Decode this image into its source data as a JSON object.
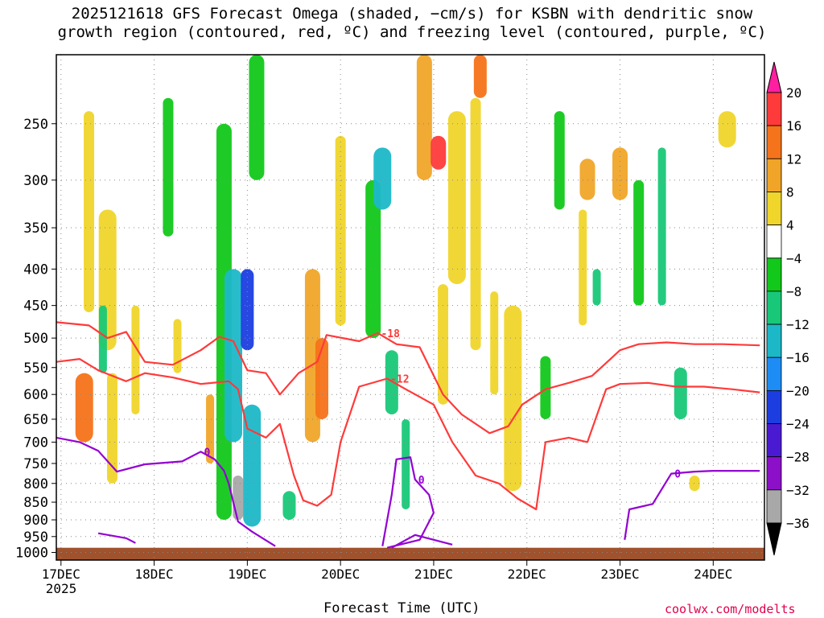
{
  "title_line1": "2025121618 GFS Forecast Omega (shaded, −cm/s) for KSBN with dendritic snow",
  "title_line2": "growth region (contoured, red, ºC) and freezing level (contoured, purple, ºC)",
  "xaxis_title": "Forecast Time (UTC)",
  "credit": "coolwx.com/modelts",
  "colors": {
    "dgz_contour": "#ff3a3a",
    "freezing_contour": "#9400d3",
    "ground": "#a0522d",
    "grid": "#888888"
  },
  "chart_data": {
    "type": "heatmap",
    "x_label": "Forecast Time (UTC)",
    "x_range": [
      "2025-12-17 00Z",
      "2025-12-24 12Z"
    ],
    "x_ticks": [
      {
        "day": 17,
        "label": "17DEC",
        "sublabel": "2025"
      },
      {
        "day": 18,
        "label": "18DEC"
      },
      {
        "day": 19,
        "label": "19DEC"
      },
      {
        "day": 20,
        "label": "20DEC"
      },
      {
        "day": 21,
        "label": "21DEC"
      },
      {
        "day": 22,
        "label": "22DEC"
      },
      {
        "day": 23,
        "label": "23DEC"
      },
      {
        "day": 24,
        "label": "24DEC"
      }
    ],
    "y_axis": {
      "unit": "hPa",
      "scale": "log",
      "inverted": true,
      "range": [
        1025,
        200
      ]
    },
    "y_ticks": [
      250,
      300,
      350,
      400,
      450,
      500,
      550,
      600,
      650,
      700,
      750,
      800,
      850,
      900,
      950,
      1000
    ],
    "grid": true,
    "colorbar": {
      "labels": [
        "20",
        "16",
        "12",
        "8",
        "4",
        "−4",
        "−8",
        "−12",
        "−16",
        "−20",
        "−24",
        "−28",
        "−32",
        "−36"
      ],
      "colors": [
        "#ff1fa0",
        "#ff3a3a",
        "#f5731a",
        "#f0a528",
        "#f0d52b",
        "#ffffff",
        "#12c81a",
        "#18c878",
        "#1cb8c8",
        "#1e8cf5",
        "#1c3ee0",
        "#4a1ad2",
        "#8c10c8",
        "#a8a8a8",
        "#000000"
      ],
      "levels": [
        20,
        16,
        12,
        8,
        4,
        -4,
        -8,
        -12,
        -16,
        -20,
        -24,
        -28,
        -32,
        -36
      ]
    },
    "omega_cells": [
      {
        "t": 17.25,
        "p": [
          700,
          560
        ],
        "v": 14
      },
      {
        "t": 17.3,
        "p": [
          460,
          240
        ],
        "v": 6
      },
      {
        "t": 17.5,
        "p": [
          520,
          330
        ],
        "v": 4
      },
      {
        "t": 17.55,
        "p": [
          800,
          560
        ],
        "v": 6
      },
      {
        "t": 17.8,
        "p": [
          640,
          450
        ],
        "v": 5
      },
      {
        "t": 17.45,
        "p": [
          560,
          450
        ],
        "v": -10
      },
      {
        "t": 18.15,
        "p": [
          360,
          230
        ],
        "v": -6
      },
      {
        "t": 18.25,
        "p": [
          560,
          470
        ],
        "v": 5
      },
      {
        "t": 18.6,
        "p": [
          750,
          600
        ],
        "v": 10
      },
      {
        "t": 18.75,
        "p": [
          900,
          250
        ],
        "v": -8
      },
      {
        "t": 18.85,
        "p": [
          700,
          400
        ],
        "v": -14
      },
      {
        "t": 18.9,
        "p": [
          900,
          780
        ],
        "v": -36
      },
      {
        "t": 19.0,
        "p": [
          520,
          400
        ],
        "v": -22
      },
      {
        "t": 19.05,
        "p": [
          920,
          620
        ],
        "v": -14
      },
      {
        "t": 19.1,
        "p": [
          300,
          200
        ],
        "v": -8
      },
      {
        "t": 19.45,
        "p": [
          900,
          820
        ],
        "v": -12
      },
      {
        "t": 19.7,
        "p": [
          700,
          400
        ],
        "v": 8
      },
      {
        "t": 19.8,
        "p": [
          650,
          500
        ],
        "v": 12
      },
      {
        "t": 20.0,
        "p": [
          480,
          260
        ],
        "v": 6
      },
      {
        "t": 20.35,
        "p": [
          500,
          300
        ],
        "v": -8
      },
      {
        "t": 20.45,
        "p": [
          330,
          270
        ],
        "v": -14
      },
      {
        "t": 20.55,
        "p": [
          640,
          520
        ],
        "v": -12
      },
      {
        "t": 20.7,
        "p": [
          870,
          650
        ],
        "v": -10
      },
      {
        "t": 20.9,
        "p": [
          300,
          200
        ],
        "v": 8
      },
      {
        "t": 21.05,
        "p": [
          290,
          260
        ],
        "v": 18
      },
      {
        "t": 21.1,
        "p": [
          620,
          420
        ],
        "v": 6
      },
      {
        "t": 21.25,
        "p": [
          420,
          240
        ],
        "v": 4
      },
      {
        "t": 21.45,
        "p": [
          520,
          230
        ],
        "v": 6
      },
      {
        "t": 21.5,
        "p": [
          230,
          200
        ],
        "v": 12
      },
      {
        "t": 21.65,
        "p": [
          600,
          430
        ],
        "v": 5
      },
      {
        "t": 21.85,
        "p": [
          820,
          450
        ],
        "v": 4
      },
      {
        "t": 22.2,
        "p": [
          650,
          530
        ],
        "v": -6
      },
      {
        "t": 22.35,
        "p": [
          330,
          240
        ],
        "v": -6
      },
      {
        "t": 22.6,
        "p": [
          480,
          330
        ],
        "v": 5
      },
      {
        "t": 22.65,
        "p": [
          320,
          280
        ],
        "v": 8
      },
      {
        "t": 22.75,
        "p": [
          450,
          400
        ],
        "v": -10
      },
      {
        "t": 23.0,
        "p": [
          320,
          270
        ],
        "v": 8
      },
      {
        "t": 23.2,
        "p": [
          450,
          300
        ],
        "v": -6
      },
      {
        "t": 23.45,
        "p": [
          450,
          270
        ],
        "v": -10
      },
      {
        "t": 23.65,
        "p": [
          650,
          550
        ],
        "v": -12
      },
      {
        "t": 23.8,
        "p": [
          820,
          780
        ],
        "v": 6
      },
      {
        "t": 24.15,
        "p": [
          270,
          240
        ],
        "v": 4
      }
    ],
    "dgz_contours": [
      {
        "label": "-18",
        "points": [
          [
            16.95,
            475
          ],
          [
            17.3,
            480
          ],
          [
            17.5,
            500
          ],
          [
            17.7,
            490
          ],
          [
            17.9,
            540
          ],
          [
            18.2,
            545
          ],
          [
            18.5,
            520
          ],
          [
            18.7,
            498
          ],
          [
            18.85,
            505
          ],
          [
            19.0,
            555
          ],
          [
            19.2,
            560
          ],
          [
            19.35,
            600
          ],
          [
            19.55,
            560
          ],
          [
            19.75,
            540
          ],
          [
            19.85,
            495
          ],
          [
            20.2,
            505
          ],
          [
            20.4,
            492
          ],
          [
            20.6,
            510
          ],
          [
            20.85,
            515
          ],
          [
            21.1,
            600
          ],
          [
            21.3,
            640
          ],
          [
            21.6,
            680
          ],
          [
            21.8,
            665
          ],
          [
            21.95,
            620
          ],
          [
            22.2,
            590
          ],
          [
            22.45,
            578
          ],
          [
            22.7,
            565
          ],
          [
            23.0,
            520
          ],
          [
            23.2,
            510
          ],
          [
            23.5,
            507
          ],
          [
            23.8,
            510
          ],
          [
            24.1,
            510
          ],
          [
            24.5,
            512
          ]
        ]
      },
      {
        "label": "-12",
        "points": [
          [
            16.95,
            540
          ],
          [
            17.2,
            535
          ],
          [
            17.4,
            555
          ],
          [
            17.7,
            575
          ],
          [
            17.9,
            560
          ],
          [
            18.2,
            568
          ],
          [
            18.5,
            580
          ],
          [
            18.8,
            575
          ],
          [
            18.9,
            590
          ],
          [
            19.0,
            670
          ],
          [
            19.2,
            690
          ],
          [
            19.35,
            660
          ],
          [
            19.5,
            780
          ],
          [
            19.6,
            845
          ],
          [
            19.75,
            860
          ],
          [
            19.9,
            830
          ],
          [
            20.0,
            700
          ],
          [
            20.2,
            585
          ],
          [
            20.5,
            570
          ],
          [
            20.7,
            590
          ],
          [
            21.0,
            620
          ],
          [
            21.2,
            700
          ],
          [
            21.45,
            780
          ],
          [
            21.7,
            800
          ],
          [
            21.9,
            840
          ],
          [
            22.1,
            870
          ],
          [
            22.2,
            700
          ],
          [
            22.45,
            690
          ],
          [
            22.65,
            700
          ],
          [
            22.85,
            590
          ],
          [
            23.0,
            580
          ],
          [
            23.3,
            578
          ],
          [
            23.6,
            585
          ],
          [
            23.9,
            585
          ],
          [
            24.2,
            590
          ],
          [
            24.5,
            596
          ]
        ]
      }
    ],
    "freezing_contours": [
      {
        "label": "0",
        "points": [
          [
            16.95,
            690
          ],
          [
            17.2,
            700
          ],
          [
            17.4,
            720
          ],
          [
            17.6,
            770
          ],
          [
            17.9,
            752
          ],
          [
            18.3,
            745
          ],
          [
            18.5,
            722
          ],
          [
            18.65,
            740
          ],
          [
            18.75,
            768
          ],
          [
            18.8,
            800
          ],
          [
            18.9,
            905
          ],
          [
            19.05,
            935
          ],
          [
            19.3,
            980
          ]
        ]
      },
      {
        "label": "0",
        "points": [
          [
            20.45,
            980
          ],
          [
            20.55,
            830
          ],
          [
            20.6,
            740
          ],
          [
            20.75,
            735
          ],
          [
            20.8,
            790
          ],
          [
            20.95,
            830
          ],
          [
            21.0,
            880
          ],
          [
            20.85,
            960
          ],
          [
            20.5,
            985
          ]
        ]
      },
      {
        "label": "0",
        "points": [
          [
            23.05,
            960
          ],
          [
            23.1,
            870
          ],
          [
            23.35,
            855
          ],
          [
            23.55,
            775
          ],
          [
            23.8,
            770
          ],
          [
            24.0,
            768
          ],
          [
            24.5,
            768
          ]
        ]
      },
      {
        "label": "",
        "points": [
          [
            17.4,
            940
          ],
          [
            17.7,
            955
          ],
          [
            17.8,
            970
          ]
        ]
      },
      {
        "label": "",
        "points": [
          [
            20.55,
            985
          ],
          [
            20.8,
            945
          ],
          [
            21.2,
            975
          ]
        ]
      }
    ]
  }
}
